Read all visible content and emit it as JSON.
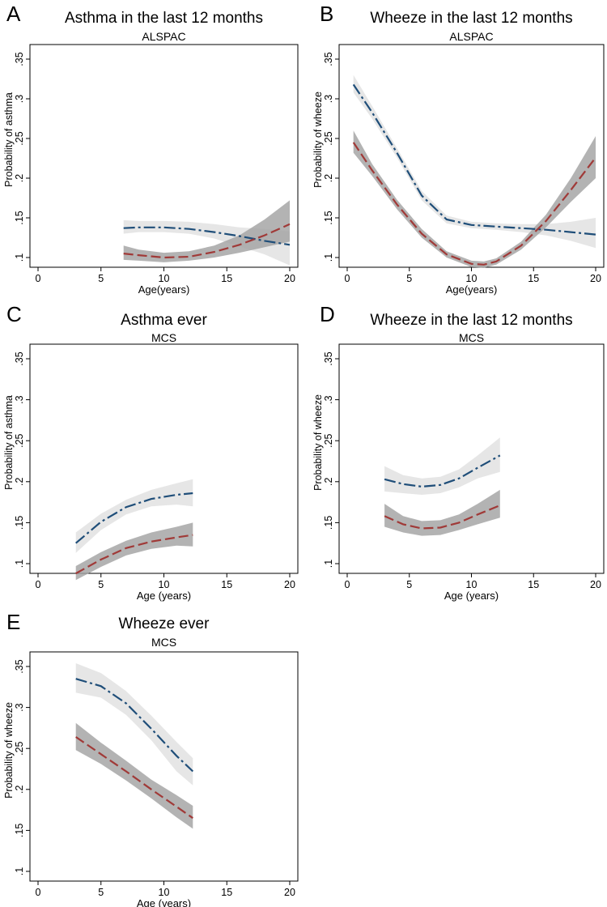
{
  "chart_data": [
    {
      "id": "A",
      "type": "line",
      "panel_letter": "A",
      "title": "Asthma in the last 12 months",
      "subtitle": "ALSPAC",
      "xlabel": "Age(years)",
      "ylabel": "Probability of asthma",
      "xlim": [
        0,
        20
      ],
      "ylim": [
        0.1,
        0.35
      ],
      "xticks": [
        "0",
        "5",
        "10",
        "15",
        "20"
      ],
      "yticks": [
        ".1",
        ".15",
        ".2",
        ".25",
        ".3",
        ".35"
      ],
      "series": [
        {
          "name": "blue",
          "color": "#1f4e79",
          "band": "#e3e3e3",
          "x": [
            6.8,
            8,
            10,
            12,
            14,
            16,
            18,
            20
          ],
          "y": [
            0.137,
            0.138,
            0.138,
            0.136,
            0.132,
            0.127,
            0.121,
            0.116
          ],
          "lower": [
            0.13,
            0.132,
            0.132,
            0.13,
            0.124,
            0.114,
            0.104,
            0.09
          ],
          "upper": [
            0.147,
            0.146,
            0.146,
            0.145,
            0.142,
            0.138,
            0.136,
            0.133
          ]
        },
        {
          "name": "red",
          "color": "#a03a38",
          "band": "#a2a2a2",
          "x": [
            6.8,
            8,
            10,
            12,
            14,
            16,
            18,
            20
          ],
          "y": [
            0.105,
            0.103,
            0.1,
            0.101,
            0.107,
            0.116,
            0.128,
            0.142
          ],
          "lower": [
            0.097,
            0.096,
            0.094,
            0.096,
            0.1,
            0.106,
            0.113,
            0.12
          ],
          "upper": [
            0.115,
            0.11,
            0.106,
            0.108,
            0.115,
            0.128,
            0.148,
            0.172
          ]
        }
      ]
    },
    {
      "id": "B",
      "type": "line",
      "panel_letter": "B",
      "title": "Wheeze in the last 12 months",
      "subtitle": "ALSPAC",
      "xlabel": "Age(years)",
      "ylabel": "Probability of wheeze",
      "xlim": [
        0,
        20
      ],
      "ylim": [
        0.1,
        0.35
      ],
      "xticks": [
        "0",
        "5",
        "10",
        "15",
        "20"
      ],
      "yticks": [
        ".1",
        ".15",
        ".2",
        ".25",
        ".3",
        ".35"
      ],
      "series": [
        {
          "name": "blue",
          "color": "#1f4e79",
          "band": "#e3e3e3",
          "x": [
            0.5,
            2,
            4,
            6,
            8,
            10,
            12,
            14,
            16,
            18,
            20
          ],
          "y": [
            0.318,
            0.283,
            0.232,
            0.178,
            0.148,
            0.141,
            0.139,
            0.137,
            0.135,
            0.132,
            0.129
          ],
          "lower": [
            0.308,
            0.275,
            0.226,
            0.172,
            0.143,
            0.137,
            0.135,
            0.132,
            0.128,
            0.121,
            0.112
          ],
          "upper": [
            0.33,
            0.291,
            0.238,
            0.184,
            0.153,
            0.145,
            0.143,
            0.142,
            0.142,
            0.145,
            0.15
          ]
        },
        {
          "name": "red",
          "color": "#a03a38",
          "band": "#a2a2a2",
          "x": [
            0.5,
            2,
            4,
            6,
            8,
            10,
            11,
            12,
            14,
            16,
            18,
            20
          ],
          "y": [
            0.245,
            0.21,
            0.167,
            0.13,
            0.104,
            0.092,
            0.091,
            0.095,
            0.115,
            0.146,
            0.185,
            0.226
          ],
          "lower": [
            0.232,
            0.203,
            0.161,
            0.125,
            0.1,
            0.088,
            0.087,
            0.091,
            0.11,
            0.138,
            0.17,
            0.2
          ],
          "upper": [
            0.26,
            0.218,
            0.173,
            0.136,
            0.108,
            0.096,
            0.095,
            0.099,
            0.12,
            0.154,
            0.2,
            0.253
          ]
        }
      ]
    },
    {
      "id": "C",
      "type": "line",
      "panel_letter": "C",
      "title": "Asthma ever",
      "subtitle": "MCS",
      "xlabel": "Age (years)",
      "ylabel": "Probability of asthma",
      "xlim": [
        0,
        20
      ],
      "ylim": [
        0.1,
        0.35
      ],
      "xticks": [
        "0",
        "5",
        "10",
        "15",
        "20"
      ],
      "yticks": [
        ".1",
        ".15",
        ".2",
        ".25",
        ".3",
        ".35"
      ],
      "series": [
        {
          "name": "blue",
          "color": "#1f4e79",
          "band": "#e3e3e3",
          "x": [
            3,
            5,
            7,
            9,
            11,
            12.3
          ],
          "y": [
            0.125,
            0.151,
            0.169,
            0.179,
            0.184,
            0.186
          ],
          "lower": [
            0.113,
            0.141,
            0.16,
            0.17,
            0.172,
            0.17
          ],
          "upper": [
            0.138,
            0.161,
            0.178,
            0.19,
            0.198,
            0.203
          ]
        },
        {
          "name": "red",
          "color": "#a03a38",
          "band": "#a2a2a2",
          "x": [
            3,
            5,
            7,
            9,
            11,
            12.3
          ],
          "y": [
            0.088,
            0.105,
            0.119,
            0.127,
            0.132,
            0.135
          ],
          "lower": [
            0.08,
            0.096,
            0.11,
            0.118,
            0.122,
            0.121
          ],
          "upper": [
            0.097,
            0.114,
            0.128,
            0.138,
            0.145,
            0.15
          ]
        }
      ]
    },
    {
      "id": "D",
      "type": "line",
      "panel_letter": "D",
      "title": "Wheeze in the last 12 months",
      "subtitle": "MCS",
      "xlabel": "Age (years)",
      "ylabel": "Probability of wheeze",
      "xlim": [
        0,
        20
      ],
      "ylim": [
        0.1,
        0.35
      ],
      "xticks": [
        "0",
        "5",
        "10",
        "15",
        "20"
      ],
      "yticks": [
        ".1",
        ".15",
        ".2",
        ".25",
        ".3",
        ".35"
      ],
      "series": [
        {
          "name": "blue",
          "color": "#1f4e79",
          "band": "#e3e3e3",
          "x": [
            3,
            4.5,
            6,
            7.5,
            9,
            10.5,
            12.3
          ],
          "y": [
            0.203,
            0.197,
            0.194,
            0.196,
            0.204,
            0.217,
            0.232
          ],
          "lower": [
            0.188,
            0.186,
            0.184,
            0.186,
            0.193,
            0.204,
            0.212
          ],
          "upper": [
            0.219,
            0.208,
            0.204,
            0.206,
            0.215,
            0.232,
            0.254
          ]
        },
        {
          "name": "red",
          "color": "#a03a38",
          "band": "#a2a2a2",
          "x": [
            3,
            4.5,
            6,
            7.5,
            9,
            10.5,
            12.3
          ],
          "y": [
            0.158,
            0.148,
            0.143,
            0.144,
            0.15,
            0.16,
            0.171
          ],
          "lower": [
            0.145,
            0.138,
            0.134,
            0.135,
            0.141,
            0.148,
            0.156
          ],
          "upper": [
            0.173,
            0.158,
            0.152,
            0.153,
            0.16,
            0.173,
            0.19
          ]
        }
      ]
    },
    {
      "id": "E",
      "type": "line",
      "panel_letter": "E",
      "title": "Wheeze ever",
      "subtitle": "MCS",
      "xlabel": "Age (years)",
      "ylabel": "Probability of wheeze",
      "xlim": [
        0,
        20
      ],
      "ylim": [
        0.1,
        0.35
      ],
      "xticks": [
        "0",
        "5",
        "10",
        "15",
        "20"
      ],
      "yticks": [
        ".1",
        ".15",
        ".2",
        ".25",
        ".3",
        ".35"
      ],
      "series": [
        {
          "name": "blue",
          "color": "#1f4e79",
          "band": "#e3e3e3",
          "x": [
            3,
            5,
            7,
            9,
            11,
            12.3
          ],
          "y": [
            0.335,
            0.326,
            0.305,
            0.274,
            0.241,
            0.222
          ],
          "lower": [
            0.318,
            0.312,
            0.291,
            0.26,
            0.222,
            0.205
          ],
          "upper": [
            0.354,
            0.342,
            0.32,
            0.29,
            0.258,
            0.238
          ]
        },
        {
          "name": "red",
          "color": "#a03a38",
          "band": "#a2a2a2",
          "x": [
            3,
            5,
            7,
            9,
            11,
            12.3
          ],
          "y": [
            0.264,
            0.243,
            0.222,
            0.2,
            0.179,
            0.165
          ],
          "lower": [
            0.248,
            0.231,
            0.211,
            0.189,
            0.166,
            0.152
          ],
          "upper": [
            0.281,
            0.257,
            0.235,
            0.212,
            0.193,
            0.18
          ]
        }
      ]
    }
  ]
}
